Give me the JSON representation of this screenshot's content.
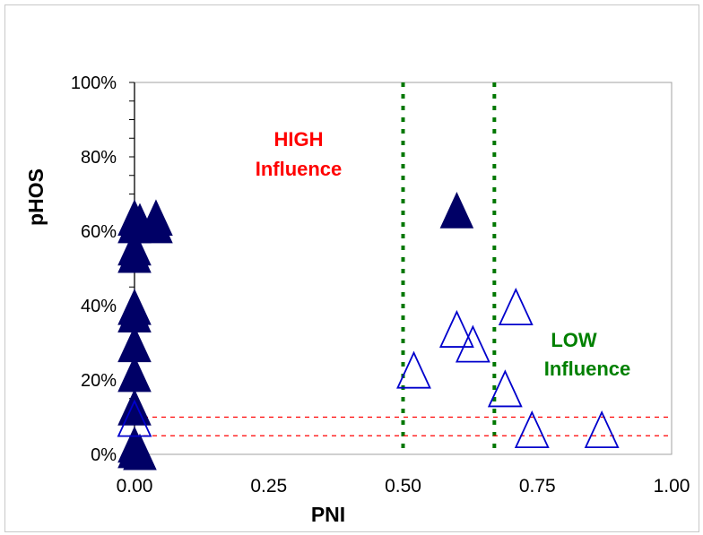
{
  "chart_data": {
    "type": "scatter",
    "title": "",
    "xlabel": "PNI",
    "ylabel": "pHOS",
    "xlim": [
      0,
      1
    ],
    "ylim": [
      0,
      1
    ],
    "x_ticks": [
      {
        "value": 0.0,
        "label": "0.00"
      },
      {
        "value": 0.25,
        "label": "0.25"
      },
      {
        "value": 0.5,
        "label": "0.50"
      },
      {
        "value": 0.75,
        "label": "0.75"
      },
      {
        "value": 1.0,
        "label": "1.00"
      }
    ],
    "y_ticks": [
      {
        "value": 0.0,
        "label": "0%"
      },
      {
        "value": 0.2,
        "label": "20%"
      },
      {
        "value": 0.4,
        "label": "40%"
      },
      {
        "value": 0.6,
        "label": "60%"
      },
      {
        "value": 0.8,
        "label": "80%"
      },
      {
        "value": 1.0,
        "label": "100%"
      }
    ],
    "grid": false,
    "legend": "none",
    "series": [
      {
        "marker": "filled-triangle",
        "color": "#000066",
        "points": [
          {
            "x": 0.0,
            "y": 0.63
          },
          {
            "x": 0.0,
            "y": 0.61
          },
          {
            "x": 0.01,
            "y": 0.62
          },
          {
            "x": 0.04,
            "y": 0.63
          },
          {
            "x": 0.04,
            "y": 0.61
          },
          {
            "x": 0.0,
            "y": 0.55
          },
          {
            "x": 0.0,
            "y": 0.53
          },
          {
            "x": 0.0,
            "y": 0.39
          },
          {
            "x": 0.0,
            "y": 0.37
          },
          {
            "x": 0.0,
            "y": 0.29
          },
          {
            "x": 0.0,
            "y": 0.21
          },
          {
            "x": 0.0,
            "y": 0.12
          },
          {
            "x": 0.0,
            "y": 0.02
          },
          {
            "x": 0.0,
            "y": 0.005
          },
          {
            "x": 0.01,
            "y": 0.0
          },
          {
            "x": 0.6,
            "y": 0.65
          }
        ]
      },
      {
        "marker": "open-triangle",
        "color": "#0000cc",
        "points": [
          {
            "x": 0.0,
            "y": 0.09
          },
          {
            "x": 0.52,
            "y": 0.22
          },
          {
            "x": 0.6,
            "y": 0.33
          },
          {
            "x": 0.63,
            "y": 0.29
          },
          {
            "x": 0.69,
            "y": 0.17
          },
          {
            "x": 0.71,
            "y": 0.39
          },
          {
            "x": 0.74,
            "y": 0.06
          },
          {
            "x": 0.87,
            "y": 0.06
          }
        ]
      }
    ],
    "reference_lines": {
      "vertical": {
        "values": [
          0.5,
          0.67
        ],
        "color": "#007700",
        "style": "dotted"
      },
      "horizontal": {
        "values": [
          0.1,
          0.05
        ],
        "color": "#ff0000",
        "style": "dashed"
      }
    },
    "annotations": [
      {
        "line1": "HIGH",
        "line2": "Influence",
        "color": "#ff0000"
      },
      {
        "line1": "LOW",
        "line2": "Influence",
        "color": "#008000"
      }
    ]
  }
}
